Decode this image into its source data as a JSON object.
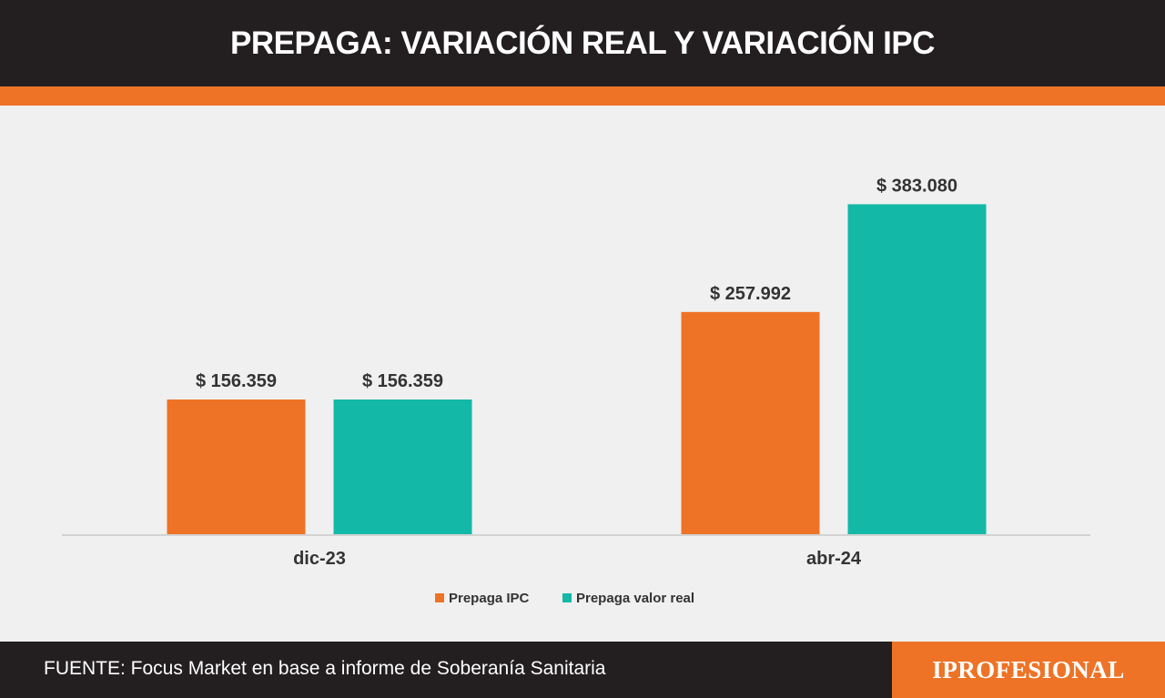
{
  "header": {
    "title": "PREPAGA: VARIACIÓN REAL Y VARIACIÓN IPC"
  },
  "footer": {
    "source": "FUENTE: Focus Market en base a informe de Soberanía Sanitaria",
    "brand": "IPROFESIONAL"
  },
  "colors": {
    "header_bg": "#231f20",
    "accent_orange": "#ee7326",
    "teal": "#13b8a6",
    "background": "#f0f0f0"
  },
  "chart_data": {
    "type": "bar",
    "title": "PREPAGA: VARIACIÓN REAL Y VARIACIÓN IPC",
    "categories": [
      "dic-23",
      "abr-24"
    ],
    "series": [
      {
        "name": "Prepaga IPC",
        "color": "#ee7326",
        "values": [
          156359,
          257992
        ],
        "labels": [
          "$ 156.359",
          "$ 257.992"
        ]
      },
      {
        "name": "Prepaga valor real",
        "color": "#13b8a6",
        "values": [
          156359,
          383080
        ],
        "labels": [
          "$ 156.359",
          "$ 383.080"
        ]
      }
    ],
    "xlabel": "",
    "ylabel": "",
    "ylim": [
      0,
      411000
    ],
    "grid": false,
    "legend": "bottom-center"
  }
}
